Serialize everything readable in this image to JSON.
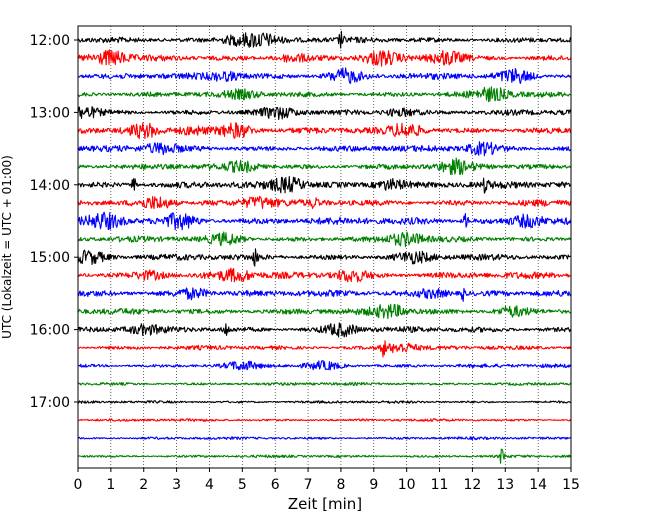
{
  "chart_data": {
    "type": "line",
    "subtype": "helicorder",
    "xlabel": "Zeit  [min]",
    "ylabel": "UTC (Lokalzeit = UTC + 01:00)",
    "xlim": [
      0,
      15
    ],
    "x_ticks": [
      "0",
      "1",
      "2",
      "3",
      "4",
      "5",
      "6",
      "7",
      "8",
      "9",
      "10",
      "11",
      "12",
      "13",
      "14",
      "15"
    ],
    "y_ticks": [
      {
        "label": "12:00",
        "row": 0
      },
      {
        "label": "13:00",
        "row": 4
      },
      {
        "label": "14:00",
        "row": 8
      },
      {
        "label": "15:00",
        "row": 12
      },
      {
        "label": "16:00",
        "row": 16
      },
      {
        "label": "17:00",
        "row": 20
      }
    ],
    "grid": "vertical dotted lines at each minute",
    "trace_colors": [
      "#000000",
      "#ff0000",
      "#0000ff",
      "#008000"
    ],
    "row_interval_min": 15,
    "traces": [
      {
        "start": "12:00",
        "color": "#000000",
        "amplitude": 0.55,
        "bursts": [
          [
            5.5,
            0.9
          ],
          [
            8.0,
            1.0
          ],
          [
            4.8,
            0.6
          ]
        ]
      },
      {
        "start": "12:15",
        "color": "#ff0000",
        "amplitude": 0.6,
        "bursts": [
          [
            9.2,
            0.8
          ],
          [
            1.0,
            0.9
          ],
          [
            11.2,
            0.9
          ],
          [
            6.5,
            0.5
          ]
        ]
      },
      {
        "start": "12:30",
        "color": "#0000ff",
        "amplitude": 0.6,
        "bursts": [
          [
            8.1,
            0.9
          ],
          [
            13.3,
            0.8
          ],
          [
            4.5,
            0.5
          ]
        ]
      },
      {
        "start": "12:45",
        "color": "#008000",
        "amplitude": 0.55,
        "bursts": [
          [
            12.6,
            0.8
          ],
          [
            5.0,
            0.4
          ]
        ]
      },
      {
        "start": "13:00",
        "color": "#000000",
        "amplitude": 0.55,
        "bursts": [
          [
            0.1,
            0.8
          ],
          [
            6.1,
            0.6
          ],
          [
            9.8,
            0.5
          ]
        ]
      },
      {
        "start": "13:15",
        "color": "#ff0000",
        "amplitude": 0.6,
        "bursts": [
          [
            4.8,
            0.9
          ],
          [
            2.0,
            0.8
          ],
          [
            10.0,
            0.9
          ],
          [
            3.5,
            0.6
          ]
        ]
      },
      {
        "start": "13:30",
        "color": "#0000ff",
        "amplitude": 0.6,
        "bursts": [
          [
            2.5,
            0.6
          ],
          [
            12.3,
            0.8
          ]
        ]
      },
      {
        "start": "13:45",
        "color": "#008000",
        "amplitude": 0.55,
        "bursts": [
          [
            5.0,
            0.6
          ],
          [
            11.5,
            0.8
          ]
        ]
      },
      {
        "start": "14:00",
        "color": "#000000",
        "amplitude": 0.7,
        "bursts": [
          [
            1.7,
            1.0
          ],
          [
            6.4,
            0.9
          ],
          [
            12.4,
            1.0
          ],
          [
            9.5,
            0.7
          ]
        ]
      },
      {
        "start": "14:15",
        "color": "#ff0000",
        "amplitude": 0.65,
        "bursts": [
          [
            7.2,
            1.0
          ],
          [
            2.4,
            0.8
          ],
          [
            5.5,
            0.7
          ]
        ]
      },
      {
        "start": "14:30",
        "color": "#0000ff",
        "amplitude": 0.75,
        "bursts": [
          [
            11.8,
            1.0
          ],
          [
            3.1,
            0.9
          ],
          [
            0.8,
            0.8
          ],
          [
            13.7,
            0.8
          ]
        ]
      },
      {
        "start": "14:45",
        "color": "#008000",
        "amplitude": 0.55,
        "bursts": [
          [
            10.0,
            0.8
          ],
          [
            4.5,
            0.7
          ]
        ]
      },
      {
        "start": "15:00",
        "color": "#000000",
        "amplitude": 0.6,
        "bursts": [
          [
            5.4,
            1.1
          ],
          [
            0.3,
            0.8
          ],
          [
            10.2,
            0.6
          ]
        ]
      },
      {
        "start": "15:15",
        "color": "#ff0000",
        "amplitude": 0.65,
        "bursts": [
          [
            8.3,
            0.8
          ],
          [
            4.8,
            0.7
          ],
          [
            2.2,
            0.5
          ]
        ]
      },
      {
        "start": "15:30",
        "color": "#0000ff",
        "amplitude": 0.6,
        "bursts": [
          [
            11.7,
            1.0
          ],
          [
            3.5,
            0.7
          ],
          [
            10.8,
            0.6
          ]
        ]
      },
      {
        "start": "15:45",
        "color": "#008000",
        "amplitude": 0.6,
        "bursts": [
          [
            9.5,
            0.8
          ],
          [
            13.2,
            0.6
          ]
        ]
      },
      {
        "start": "16:00",
        "color": "#000000",
        "amplitude": 0.55,
        "bursts": [
          [
            4.5,
            1.0
          ],
          [
            8.0,
            0.8
          ],
          [
            2.0,
            0.5
          ]
        ]
      },
      {
        "start": "16:15",
        "color": "#ff0000",
        "amplitude": 0.35,
        "bursts": [
          [
            9.3,
            1.1
          ],
          [
            9.8,
            0.7
          ]
        ]
      },
      {
        "start": "16:30",
        "color": "#0000ff",
        "amplitude": 0.3,
        "bursts": [
          [
            5.0,
            0.5
          ],
          [
            7.5,
            0.5
          ]
        ]
      },
      {
        "start": "16:45",
        "color": "#008000",
        "amplitude": 0.2,
        "bursts": []
      },
      {
        "start": "17:00",
        "color": "#000000",
        "amplitude": 0.15,
        "bursts": []
      },
      {
        "start": "17:15",
        "color": "#ff0000",
        "amplitude": 0.15,
        "bursts": []
      },
      {
        "start": "17:30",
        "color": "#0000ff",
        "amplitude": 0.15,
        "bursts": []
      },
      {
        "start": "17:45",
        "color": "#008000",
        "amplitude": 0.15,
        "bursts": [
          [
            12.9,
            1.2
          ]
        ]
      }
    ]
  }
}
